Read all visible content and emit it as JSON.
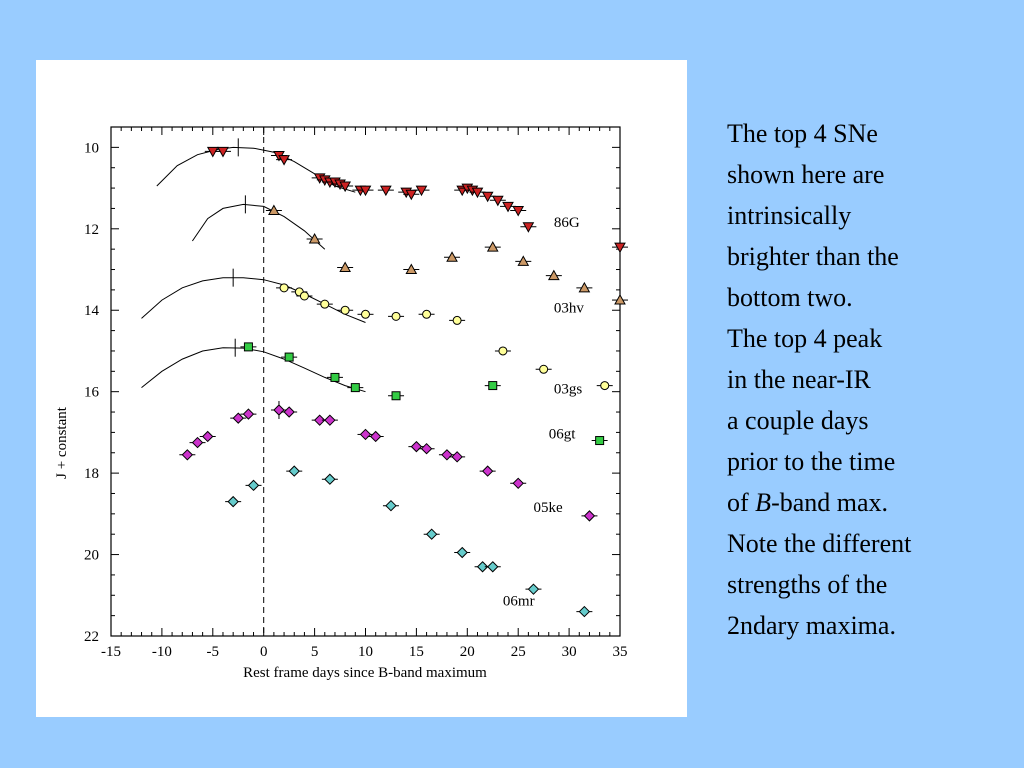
{
  "slide_text": {
    "line1": "The top 4 SNe",
    "line2": "shown here are",
    "line3": "intrinsically",
    "line4": "brighter than the",
    "line5": "bottom two.",
    "line6": "The top 4 peak",
    "line7": "in the near-IR",
    "line8": "a couple days",
    "line9": "prior to the time",
    "line10_pre": "of ",
    "line10_em": "B",
    "line10_post": "-band max.",
    "line11": "Note the different",
    "line12": "strengths of the",
    "line13": "2ndary maxima."
  },
  "colors": {
    "background": "#99ccff",
    "86G": "#cc2222",
    "03hv": "#cc9966",
    "03gs": "#ffff99",
    "06gt": "#33cc44",
    "05ke": "#cc33cc",
    "06mr": "#66cccc"
  },
  "chart_data": {
    "type": "scatter",
    "xlabel": "Rest frame days since B-band maximum",
    "ylabel": "J + constant",
    "xlim": [
      -15,
      35
    ],
    "ylim": [
      22,
      9.5
    ],
    "y_inverted": true,
    "xticks": [
      -15,
      -10,
      -5,
      0,
      5,
      10,
      15,
      20,
      25,
      30,
      35
    ],
    "yticks": [
      10,
      12,
      14,
      16,
      18,
      20,
      22
    ],
    "grid": false,
    "vertical_marker_x": 0,
    "series": [
      {
        "name": "86G",
        "marker": "triangle-down",
        "color_key": "86G",
        "label_pos": [
          28.5,
          11.95
        ],
        "points": [
          [
            -5,
            10.1
          ],
          [
            -4,
            10.1
          ],
          [
            1.5,
            10.2
          ],
          [
            2,
            10.3
          ],
          [
            5.5,
            10.75
          ],
          [
            6,
            10.8
          ],
          [
            6.5,
            10.85
          ],
          [
            7,
            10.85
          ],
          [
            7.5,
            10.9
          ],
          [
            8,
            10.95
          ],
          [
            9.5,
            11.05
          ],
          [
            10,
            11.05
          ],
          [
            12,
            11.05
          ],
          [
            14,
            11.1
          ],
          [
            14.5,
            11.15
          ],
          [
            15.5,
            11.05
          ],
          [
            19.5,
            11.05
          ],
          [
            20,
            11.0
          ],
          [
            20.5,
            11.05
          ],
          [
            21,
            11.1
          ],
          [
            22,
            11.2
          ],
          [
            23,
            11.3
          ],
          [
            24,
            11.45
          ],
          [
            25,
            11.55
          ],
          [
            26,
            11.95
          ],
          [
            35,
            12.45
          ]
        ],
        "fit": [
          [
            -10.5,
            10.95
          ],
          [
            -8.5,
            10.45
          ],
          [
            -6.5,
            10.18
          ],
          [
            -4.5,
            10.05
          ],
          [
            -3,
            10.0
          ],
          [
            -1,
            10.02
          ],
          [
            1,
            10.12
          ],
          [
            3,
            10.35
          ],
          [
            5,
            10.65
          ],
          [
            7,
            10.95
          ],
          [
            9,
            11.1
          ]
        ],
        "peak_marker": [
          -2.5,
          10.0
        ]
      },
      {
        "name": "03hv",
        "marker": "triangle-up",
        "color_key": "03hv",
        "label_pos": [
          28.5,
          14.05
        ],
        "points": [
          [
            1,
            11.55
          ],
          [
            5,
            12.25
          ],
          [
            8,
            12.95
          ],
          [
            14.5,
            13.0
          ],
          [
            18.5,
            12.7
          ],
          [
            22.5,
            12.45
          ],
          [
            25.5,
            12.8
          ],
          [
            28.5,
            13.15
          ],
          [
            31.5,
            13.45
          ],
          [
            35,
            13.75
          ]
        ],
        "fit": [
          [
            -7,
            12.3
          ],
          [
            -5.5,
            11.75
          ],
          [
            -4,
            11.5
          ],
          [
            -2,
            11.4
          ],
          [
            0,
            11.45
          ],
          [
            2,
            11.7
          ],
          [
            4,
            12.05
          ],
          [
            6,
            12.5
          ]
        ],
        "peak_marker": [
          -1.8,
          11.4
        ]
      },
      {
        "name": "03gs",
        "marker": "circle",
        "color_key": "03gs",
        "label_pos": [
          28.5,
          16.05
        ],
        "points": [
          [
            2,
            13.45
          ],
          [
            3.5,
            13.55
          ],
          [
            4,
            13.65
          ],
          [
            6,
            13.85
          ],
          [
            8,
            14.0
          ],
          [
            10,
            14.1
          ],
          [
            13,
            14.15
          ],
          [
            16,
            14.1
          ],
          [
            19,
            14.25
          ],
          [
            23.5,
            15.0
          ],
          [
            27.5,
            15.45
          ],
          [
            33.5,
            15.85
          ]
        ],
        "fit": [
          [
            -12,
            14.2
          ],
          [
            -10,
            13.75
          ],
          [
            -8,
            13.45
          ],
          [
            -6,
            13.28
          ],
          [
            -4,
            13.2
          ],
          [
            -2,
            13.2
          ],
          [
            0,
            13.25
          ],
          [
            2,
            13.38
          ],
          [
            4,
            13.6
          ],
          [
            6,
            13.85
          ],
          [
            8,
            14.1
          ],
          [
            10,
            14.3
          ]
        ],
        "peak_marker": [
          -3,
          13.2
        ]
      },
      {
        "name": "06gt",
        "marker": "square",
        "color_key": "06gt",
        "label_pos": [
          28,
          17.15
        ],
        "points": [
          [
            -1.5,
            14.9
          ],
          [
            2.5,
            15.15
          ],
          [
            7,
            15.65
          ],
          [
            9,
            15.9
          ],
          [
            13,
            16.1
          ],
          [
            22.5,
            15.85
          ],
          [
            33,
            17.2
          ]
        ],
        "fit": [
          [
            -12,
            15.9
          ],
          [
            -10,
            15.5
          ],
          [
            -8,
            15.2
          ],
          [
            -6,
            15.0
          ],
          [
            -4,
            14.92
          ],
          [
            -2,
            14.93
          ],
          [
            0,
            15.02
          ],
          [
            2,
            15.2
          ],
          [
            4,
            15.42
          ],
          [
            6,
            15.65
          ],
          [
            8,
            15.85
          ],
          [
            10,
            16.0
          ]
        ],
        "peak_marker": [
          -2.8,
          14.92
        ]
      },
      {
        "name": "05ke",
        "marker": "diamond",
        "color_key": "05ke",
        "label_pos": [
          26.5,
          18.95
        ],
        "points": [
          [
            -7.5,
            17.55
          ],
          [
            -6.5,
            17.25
          ],
          [
            -5.5,
            17.1
          ],
          [
            -2.5,
            16.65
          ],
          [
            -1.5,
            16.55
          ],
          [
            1.5,
            16.45
          ],
          [
            2.5,
            16.5
          ],
          [
            5.5,
            16.7
          ],
          [
            6.5,
            16.7
          ],
          [
            10,
            17.05
          ],
          [
            11,
            17.1
          ],
          [
            15,
            17.35
          ],
          [
            16,
            17.4
          ],
          [
            18,
            17.55
          ],
          [
            19,
            17.6
          ],
          [
            22,
            17.95
          ],
          [
            25,
            18.25
          ],
          [
            32,
            19.05
          ]
        ],
        "fit": [],
        "peak_marker": [
          1.5,
          16.45
        ]
      },
      {
        "name": "06mr",
        "marker": "diamond",
        "color_key": "06mr",
        "label_pos": [
          23.5,
          21.25
        ],
        "points": [
          [
            -3,
            18.7
          ],
          [
            -1,
            18.3
          ],
          [
            3,
            17.95
          ],
          [
            6.5,
            18.15
          ],
          [
            12.5,
            18.8
          ],
          [
            16.5,
            19.5
          ],
          [
            19.5,
            19.95
          ],
          [
            21.5,
            20.3
          ],
          [
            22.5,
            20.3
          ],
          [
            26.5,
            20.85
          ],
          [
            31.5,
            21.4
          ]
        ],
        "fit": [],
        "peak_marker": null
      }
    ]
  }
}
